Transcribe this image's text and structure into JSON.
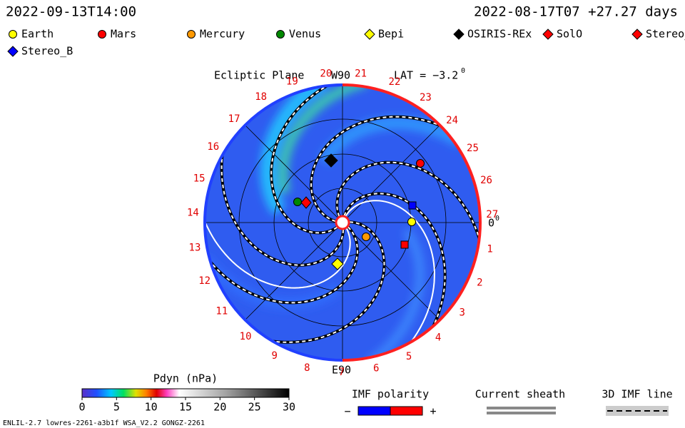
{
  "header": {
    "time": "2022-09-13T14:00",
    "run_time": "2022-08-17T07 +27.27 days"
  },
  "legend": [
    {
      "label": "Earth",
      "shape": "circle",
      "color": "#ffff00"
    },
    {
      "label": "Mars",
      "shape": "circle",
      "color": "#ff0000"
    },
    {
      "label": "Mercury",
      "shape": "circle",
      "color": "#ff9900"
    },
    {
      "label": "Venus",
      "shape": "circle",
      "color": "#008800"
    },
    {
      "label": "Bepi",
      "shape": "diamond",
      "color": "#ffff00"
    },
    {
      "label": "OSIRIS-REx",
      "shape": "diamond",
      "color": "#000000"
    },
    {
      "label": "SolO",
      "shape": "diamond",
      "color": "#ff0000"
    },
    {
      "label": "Stereo_",
      "shape": "diamond",
      "color": "#ff0000"
    },
    {
      "label": "Stereo_B",
      "shape": "diamond",
      "color": "#0000ff"
    }
  ],
  "plot": {
    "title": "Ecliptic Plane",
    "top_label": "W90",
    "bottom_label": "E90",
    "lat_label": "LAT = −3.2",
    "lat_degree": "0",
    "lon_label": "0",
    "lon_degree": "0",
    "sector_labels": [
      "1",
      "2",
      "3",
      "4",
      "5",
      "6",
      "7",
      "8",
      "9",
      "10",
      "11",
      "12",
      "13",
      "14",
      "15",
      "16",
      "17",
      "18",
      "19",
      "20",
      "21",
      "22",
      "23",
      "24",
      "25",
      "26",
      "27"
    ]
  },
  "colorbar": {
    "label": "Pdyn (nPa)",
    "ticks": [
      0,
      5,
      10,
      15,
      20,
      25,
      30
    ]
  },
  "keys": {
    "polarity_title": "IMF polarity",
    "minus": "−",
    "plus": "+",
    "sheath_title": "Current sheath",
    "line_title": "3D IMF line"
  },
  "footer": {
    "run_id": "ENLIL-2.7 lowres-2261-a3b1f WSA_V2.2 GONGZ-2261"
  }
}
